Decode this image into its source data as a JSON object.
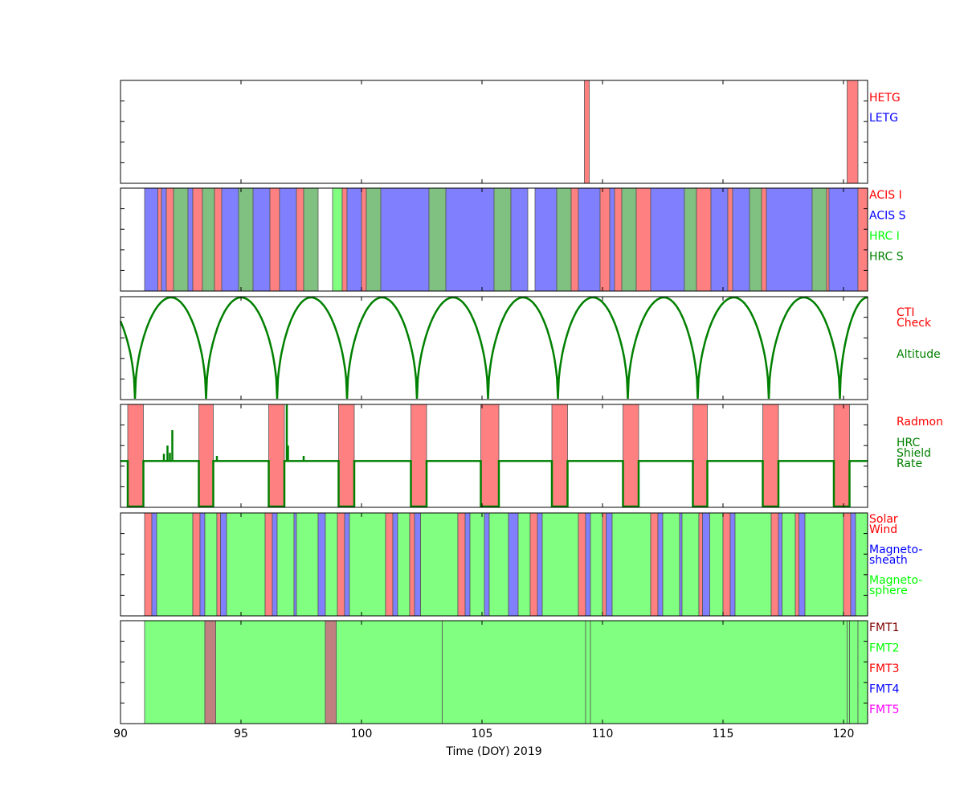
{
  "chart_data": {
    "type": "timeline",
    "xlabel": "Time (DOY) 2019",
    "xlim": [
      90,
      121
    ],
    "x_ticks": [
      90,
      95,
      100,
      105,
      110,
      115,
      120
    ],
    "panels": [
      {
        "id": "gratings",
        "legend": [
          {
            "label": "HETG",
            "color": "#ff0000"
          },
          {
            "label": "LETG",
            "color": "#0000ff"
          }
        ],
        "intervals": [
          {
            "start": 109.25,
            "end": 109.45,
            "color": "#ff8080"
          },
          {
            "start": 120.15,
            "end": 120.6,
            "color": "#ff8080"
          }
        ]
      },
      {
        "id": "instruments",
        "legend": [
          {
            "label": "ACIS I",
            "color": "#ff0000"
          },
          {
            "label": "ACIS S",
            "color": "#0000ff"
          },
          {
            "label": "HRC I",
            "color": "#00ff00"
          },
          {
            "label": "HRC S",
            "color": "#008000"
          }
        ],
        "intervals": [
          {
            "start": 91.0,
            "end": 91.55,
            "color": "#8080ff"
          },
          {
            "start": 91.55,
            "end": 91.7,
            "color": "#ff8080"
          },
          {
            "start": 91.7,
            "end": 91.9,
            "color": "#8080ff"
          },
          {
            "start": 91.9,
            "end": 92.2,
            "color": "#ff8080"
          },
          {
            "start": 92.2,
            "end": 92.8,
            "color": "#80c080"
          },
          {
            "start": 92.8,
            "end": 93.0,
            "color": "#8080ff"
          },
          {
            "start": 93.0,
            "end": 93.4,
            "color": "#ff8080"
          },
          {
            "start": 93.4,
            "end": 93.9,
            "color": "#80c080"
          },
          {
            "start": 93.9,
            "end": 94.2,
            "color": "#ff8080"
          },
          {
            "start": 94.2,
            "end": 94.9,
            "color": "#8080ff"
          },
          {
            "start": 94.9,
            "end": 95.5,
            "color": "#80c080"
          },
          {
            "start": 95.5,
            "end": 96.2,
            "color": "#8080ff"
          },
          {
            "start": 96.2,
            "end": 96.6,
            "color": "#ff8080"
          },
          {
            "start": 96.6,
            "end": 97.3,
            "color": "#8080ff"
          },
          {
            "start": 97.3,
            "end": 97.6,
            "color": "#ff8080"
          },
          {
            "start": 97.6,
            "end": 98.2,
            "color": "#80c080"
          },
          {
            "start": 98.8,
            "end": 99.2,
            "color": "#80ff80"
          },
          {
            "start": 99.2,
            "end": 99.4,
            "color": "#ff8080"
          },
          {
            "start": 99.4,
            "end": 100.0,
            "color": "#8080ff"
          },
          {
            "start": 100.0,
            "end": 100.2,
            "color": "#ff8080"
          },
          {
            "start": 100.2,
            "end": 100.8,
            "color": "#80c080"
          },
          {
            "start": 100.8,
            "end": 102.8,
            "color": "#8080ff"
          },
          {
            "start": 102.8,
            "end": 103.5,
            "color": "#80c080"
          },
          {
            "start": 103.5,
            "end": 105.5,
            "color": "#8080ff"
          },
          {
            "start": 105.5,
            "end": 106.2,
            "color": "#80c080"
          },
          {
            "start": 106.2,
            "end": 106.9,
            "color": "#8080ff"
          },
          {
            "start": 107.2,
            "end": 108.1,
            "color": "#8080ff"
          },
          {
            "start": 108.1,
            "end": 108.7,
            "color": "#80c080"
          },
          {
            "start": 108.7,
            "end": 109.0,
            "color": "#ff8080"
          },
          {
            "start": 109.0,
            "end": 109.9,
            "color": "#8080ff"
          },
          {
            "start": 109.9,
            "end": 110.3,
            "color": "#ff8080"
          },
          {
            "start": 110.3,
            "end": 110.5,
            "color": "#8080ff"
          },
          {
            "start": 110.5,
            "end": 110.8,
            "color": "#ff8080"
          },
          {
            "start": 110.8,
            "end": 111.4,
            "color": "#80c080"
          },
          {
            "start": 111.4,
            "end": 112.0,
            "color": "#ff8080"
          },
          {
            "start": 112.0,
            "end": 113.4,
            "color": "#8080ff"
          },
          {
            "start": 113.4,
            "end": 113.9,
            "color": "#80c080"
          },
          {
            "start": 113.9,
            "end": 114.5,
            "color": "#ff8080"
          },
          {
            "start": 114.5,
            "end": 115.2,
            "color": "#8080ff"
          },
          {
            "start": 115.2,
            "end": 115.4,
            "color": "#ff8080"
          },
          {
            "start": 115.4,
            "end": 116.1,
            "color": "#8080ff"
          },
          {
            "start": 116.1,
            "end": 116.6,
            "color": "#80c080"
          },
          {
            "start": 116.6,
            "end": 116.8,
            "color": "#ff8080"
          },
          {
            "start": 116.8,
            "end": 118.7,
            "color": "#8080ff"
          },
          {
            "start": 118.7,
            "end": 119.3,
            "color": "#80c080"
          },
          {
            "start": 119.3,
            "end": 119.4,
            "color": "#ff8080"
          },
          {
            "start": 119.4,
            "end": 120.6,
            "color": "#8080ff"
          },
          {
            "start": 120.6,
            "end": 121.0,
            "color": "#ff8080"
          }
        ]
      },
      {
        "id": "altitude",
        "legend": [
          {
            "label": "CTI\nCheck",
            "color": "#ff0000"
          },
          {
            "label": "Altitude",
            "color": "#008000"
          }
        ],
        "line_color": "#008000",
        "perigees": [
          90.6,
          93.55,
          96.5,
          99.4,
          102.3,
          105.25,
          108.15,
          111.05,
          113.95,
          116.9,
          119.85
        ],
        "apogees": [
          92.1,
          95.0,
          97.9,
          100.85,
          103.8,
          106.7,
          109.6,
          112.55,
          115.45,
          118.35,
          121.0
        ]
      },
      {
        "id": "radmon",
        "legend": [
          {
            "label": "Radmon",
            "color": "#ff0000"
          },
          {
            "label": "HRC\nShield\nRate",
            "color": "#008000"
          }
        ],
        "line_color": "#008000",
        "intervals": [
          {
            "start": 90.3,
            "end": 90.95,
            "color": "#ff8080"
          },
          {
            "start": 93.25,
            "end": 93.85,
            "color": "#ff8080"
          },
          {
            "start": 96.15,
            "end": 96.8,
            "color": "#ff8080"
          },
          {
            "start": 99.05,
            "end": 99.7,
            "color": "#ff8080"
          },
          {
            "start": 102.05,
            "end": 102.7,
            "color": "#ff8080"
          },
          {
            "start": 104.95,
            "end": 105.7,
            "color": "#ff8080"
          },
          {
            "start": 107.9,
            "end": 108.55,
            "color": "#ff8080"
          },
          {
            "start": 110.85,
            "end": 111.5,
            "color": "#ff8080"
          },
          {
            "start": 113.75,
            "end": 114.35,
            "color": "#ff8080"
          },
          {
            "start": 116.65,
            "end": 117.3,
            "color": "#ff8080"
          },
          {
            "start": 119.6,
            "end": 120.25,
            "color": "#ff8080"
          }
        ],
        "rate_level": 0.45,
        "spikes": [
          {
            "x": 91.8,
            "y": 0.52
          },
          {
            "x": 91.95,
            "y": 0.6
          },
          {
            "x": 92.05,
            "y": 0.53
          },
          {
            "x": 92.15,
            "y": 0.75
          },
          {
            "x": 94.0,
            "y": 0.5
          },
          {
            "x": 96.9,
            "y": 1.0
          },
          {
            "x": 96.95,
            "y": 0.6
          },
          {
            "x": 97.6,
            "y": 0.5
          }
        ]
      },
      {
        "id": "region",
        "legend": [
          {
            "label": "Solar\nWind",
            "color": "#ff0000"
          },
          {
            "label": "Magneto-\nsheath",
            "color": "#0000ff"
          },
          {
            "label": "Magneto-\nsphere",
            "color": "#00ff00"
          }
        ],
        "intervals": [
          {
            "start": 91.0,
            "end": 91.3,
            "color": "#ff8080"
          },
          {
            "start": 91.3,
            "end": 91.5,
            "color": "#8080ff"
          },
          {
            "start": 91.5,
            "end": 93.0,
            "color": "#80ff80"
          },
          {
            "start": 93.0,
            "end": 93.3,
            "color": "#ff8080"
          },
          {
            "start": 93.3,
            "end": 93.5,
            "color": "#8080ff"
          },
          {
            "start": 93.5,
            "end": 94.0,
            "color": "#80ff80"
          },
          {
            "start": 94.0,
            "end": 94.15,
            "color": "#ff8080"
          },
          {
            "start": 94.15,
            "end": 94.4,
            "color": "#8080ff"
          },
          {
            "start": 94.4,
            "end": 96.0,
            "color": "#80ff80"
          },
          {
            "start": 96.0,
            "end": 96.3,
            "color": "#ff8080"
          },
          {
            "start": 96.3,
            "end": 96.5,
            "color": "#8080ff"
          },
          {
            "start": 96.5,
            "end": 97.2,
            "color": "#80ff80"
          },
          {
            "start": 97.2,
            "end": 97.3,
            "color": "#8080ff"
          },
          {
            "start": 97.3,
            "end": 98.2,
            "color": "#80ff80"
          },
          {
            "start": 98.2,
            "end": 98.5,
            "color": "#8080ff"
          },
          {
            "start": 98.5,
            "end": 99.0,
            "color": "#80ff80"
          },
          {
            "start": 99.0,
            "end": 99.3,
            "color": "#ff8080"
          },
          {
            "start": 99.3,
            "end": 99.5,
            "color": "#8080ff"
          },
          {
            "start": 99.5,
            "end": 101.0,
            "color": "#80ff80"
          },
          {
            "start": 101.0,
            "end": 101.3,
            "color": "#ff8080"
          },
          {
            "start": 101.3,
            "end": 101.5,
            "color": "#8080ff"
          },
          {
            "start": 101.5,
            "end": 102.0,
            "color": "#80ff80"
          },
          {
            "start": 102.0,
            "end": 102.2,
            "color": "#ff8080"
          },
          {
            "start": 102.2,
            "end": 102.45,
            "color": "#8080ff"
          },
          {
            "start": 102.45,
            "end": 104.0,
            "color": "#80ff80"
          },
          {
            "start": 104.0,
            "end": 104.3,
            "color": "#ff8080"
          },
          {
            "start": 104.3,
            "end": 104.5,
            "color": "#8080ff"
          },
          {
            "start": 104.5,
            "end": 105.1,
            "color": "#80ff80"
          },
          {
            "start": 105.1,
            "end": 105.3,
            "color": "#8080ff"
          },
          {
            "start": 105.3,
            "end": 106.1,
            "color": "#80ff80"
          },
          {
            "start": 106.1,
            "end": 106.5,
            "color": "#8080ff"
          },
          {
            "start": 106.5,
            "end": 107.0,
            "color": "#80ff80"
          },
          {
            "start": 107.0,
            "end": 107.3,
            "color": "#ff8080"
          },
          {
            "start": 107.3,
            "end": 107.5,
            "color": "#8080ff"
          },
          {
            "start": 107.5,
            "end": 109.0,
            "color": "#80ff80"
          },
          {
            "start": 109.0,
            "end": 109.3,
            "color": "#ff8080"
          },
          {
            "start": 109.3,
            "end": 109.5,
            "color": "#8080ff"
          },
          {
            "start": 109.5,
            "end": 110.0,
            "color": "#80ff80"
          },
          {
            "start": 110.0,
            "end": 110.15,
            "color": "#ff8080"
          },
          {
            "start": 110.15,
            "end": 110.4,
            "color": "#8080ff"
          },
          {
            "start": 110.4,
            "end": 112.0,
            "color": "#80ff80"
          },
          {
            "start": 112.0,
            "end": 112.3,
            "color": "#ff8080"
          },
          {
            "start": 112.3,
            "end": 112.5,
            "color": "#8080ff"
          },
          {
            "start": 112.5,
            "end": 113.2,
            "color": "#80ff80"
          },
          {
            "start": 113.2,
            "end": 113.3,
            "color": "#8080ff"
          },
          {
            "start": 113.3,
            "end": 114.0,
            "color": "#80ff80"
          },
          {
            "start": 114.0,
            "end": 114.15,
            "color": "#ff8080"
          },
          {
            "start": 114.15,
            "end": 114.45,
            "color": "#8080ff"
          },
          {
            "start": 114.45,
            "end": 115.0,
            "color": "#80ff80"
          },
          {
            "start": 115.0,
            "end": 115.3,
            "color": "#ff8080"
          },
          {
            "start": 115.3,
            "end": 115.5,
            "color": "#8080ff"
          },
          {
            "start": 115.5,
            "end": 117.0,
            "color": "#80ff80"
          },
          {
            "start": 117.0,
            "end": 117.3,
            "color": "#ff8080"
          },
          {
            "start": 117.3,
            "end": 117.45,
            "color": "#8080ff"
          },
          {
            "start": 117.45,
            "end": 118.0,
            "color": "#80ff80"
          },
          {
            "start": 118.0,
            "end": 118.15,
            "color": "#ff8080"
          },
          {
            "start": 118.15,
            "end": 118.4,
            "color": "#8080ff"
          },
          {
            "start": 118.4,
            "end": 120.0,
            "color": "#80ff80"
          },
          {
            "start": 120.0,
            "end": 120.3,
            "color": "#ff8080"
          },
          {
            "start": 120.3,
            "end": 120.5,
            "color": "#8080ff"
          },
          {
            "start": 120.5,
            "end": 121.0,
            "color": "#80ff80"
          }
        ]
      },
      {
        "id": "fmt",
        "legend": [
          {
            "label": "FMT1",
            "color": "#800000"
          },
          {
            "label": "FMT2",
            "color": "#00ff00"
          },
          {
            "label": "FMT3",
            "color": "#ff0000"
          },
          {
            "label": "FMT4",
            "color": "#0000ff"
          },
          {
            "label": "FMT5",
            "color": "#ff00ff"
          }
        ],
        "intervals": [
          {
            "start": 91.0,
            "end": 93.5,
            "color": "#80ff80"
          },
          {
            "start": 93.5,
            "end": 93.95,
            "color": "#c08080"
          },
          {
            "start": 93.95,
            "end": 98.5,
            "color": "#80ff80"
          },
          {
            "start": 98.5,
            "end": 98.95,
            "color": "#c08080"
          },
          {
            "start": 98.95,
            "end": 103.35,
            "color": "#80ff80"
          },
          {
            "start": 103.35,
            "end": 109.3,
            "color": "#80ff80"
          },
          {
            "start": 109.3,
            "end": 109.5,
            "color": "#80ff80"
          },
          {
            "start": 109.5,
            "end": 120.15,
            "color": "#80ff80"
          },
          {
            "start": 120.15,
            "end": 120.25,
            "color": "#80ff80"
          },
          {
            "start": 120.25,
            "end": 120.6,
            "color": "#80ff80"
          },
          {
            "start": 120.6,
            "end": 121.0,
            "color": "#80ff80"
          }
        ]
      }
    ]
  }
}
